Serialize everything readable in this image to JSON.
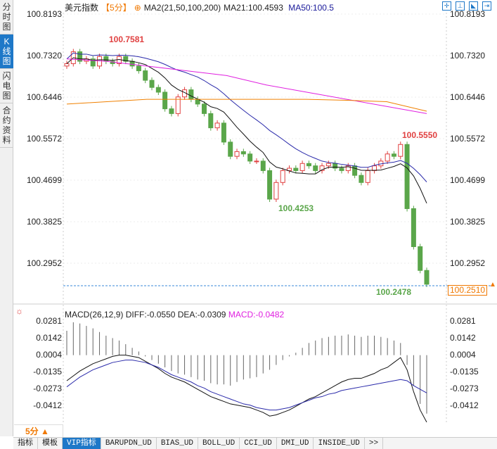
{
  "sidebar": {
    "tabs": [
      {
        "label": "分时图"
      },
      {
        "label": "K线图",
        "active": true
      },
      {
        "label": "闪电图"
      },
      {
        "label": "合约资料"
      }
    ]
  },
  "header": {
    "title": "美元指数",
    "period": "【5分】",
    "indicator": "MA2(21,50,100,200)",
    "ma21": "MA21:100.4593",
    "ma50": "MA50:100.5"
  },
  "tools": [
    "crosshair-icon",
    "range-icon",
    "draw-icon",
    "exit-icon"
  ],
  "price_axis": {
    "labels": [
      "100.8193",
      "100.7320",
      "100.6446",
      "100.5572",
      "100.4699",
      "100.3825",
      "100.2952"
    ],
    "max": 100.8193,
    "min": 100.2952
  },
  "annotations": {
    "high1": "100.7581",
    "low1": "100.4253",
    "high2": "100.5550",
    "low2": "100.2478"
  },
  "current_price": "100.2510",
  "candles_close": [
    100.715,
    100.74,
    100.72,
    100.725,
    100.71,
    100.73,
    100.72,
    100.715,
    100.73,
    100.72,
    100.71,
    100.7,
    100.68,
    100.665,
    100.655,
    100.62,
    100.61,
    100.645,
    100.66,
    100.64,
    100.63,
    100.61,
    100.58,
    100.59,
    100.55,
    100.52,
    100.53,
    100.525,
    100.51,
    100.51,
    100.49,
    100.43,
    100.465,
    100.49,
    100.495,
    100.49,
    100.505,
    100.5,
    100.49,
    100.5,
    100.505,
    100.495,
    100.49,
    100.5,
    100.48,
    100.465,
    100.49,
    100.5,
    100.51,
    100.525,
    100.52,
    100.545,
    100.41,
    100.33,
    100.28,
    100.251
  ],
  "ma100": [
    100.725,
    100.72,
    100.71,
    100.7,
    100.69,
    100.67,
    100.655,
    100.64,
    100.625,
    100.61
  ],
  "ma200": [
    100.63,
    100.635,
    100.64,
    100.64,
    100.64,
    100.64,
    100.64,
    100.638,
    100.635,
    100.615
  ],
  "macd": {
    "header": {
      "name": "MACD(26,12,9)",
      "diff": "DIFF:-0.0550",
      "dea": "DEA:-0.0309",
      "macd": "MACD:-0.0482"
    },
    "axis_labels": [
      "0.0281",
      "0.0142",
      "0.0004",
      "-0.0135",
      "-0.0273",
      "-0.0412"
    ],
    "max": 0.0281,
    "min": -0.0412,
    "hist": [
      0.02,
      0.027,
      0.026,
      0.024,
      0.022,
      0.019,
      0.016,
      0.014,
      0.012,
      0.009,
      0.006,
      0.003,
      -0.001,
      -0.004,
      -0.007,
      -0.01,
      -0.013,
      -0.015,
      -0.016,
      -0.018,
      -0.02,
      -0.021,
      -0.023,
      -0.024,
      -0.024,
      -0.025,
      -0.022,
      -0.02,
      -0.019,
      -0.018,
      -0.015,
      -0.012,
      -0.008,
      -0.004,
      -0.001,
      0.002,
      0.006,
      0.01,
      0.012,
      0.014,
      0.015,
      0.016,
      0.016,
      0.017,
      0.016,
      0.015,
      0.016,
      0.016,
      0.015,
      0.014,
      0.012,
      0.01,
      -0.008,
      -0.025,
      -0.04,
      -0.048
    ],
    "diff": [
      -0.021,
      -0.017,
      -0.013,
      -0.01,
      -0.007,
      -0.005,
      -0.003,
      -0.001,
      0.0,
      0.0,
      -0.001,
      -0.002,
      -0.005,
      -0.008,
      -0.011,
      -0.015,
      -0.018,
      -0.02,
      -0.022,
      -0.025,
      -0.028,
      -0.031,
      -0.034,
      -0.036,
      -0.038,
      -0.04,
      -0.041,
      -0.042,
      -0.043,
      -0.045,
      -0.047,
      -0.05,
      -0.049,
      -0.047,
      -0.045,
      -0.042,
      -0.039,
      -0.036,
      -0.034,
      -0.031,
      -0.028,
      -0.025,
      -0.022,
      -0.02,
      -0.019,
      -0.019,
      -0.017,
      -0.015,
      -0.012,
      -0.01,
      -0.006,
      -0.002,
      -0.012,
      -0.03,
      -0.045,
      -0.055
    ],
    "dea": [
      -0.026,
      -0.022,
      -0.018,
      -0.015,
      -0.012,
      -0.01,
      -0.008,
      -0.006,
      -0.005,
      -0.004,
      -0.004,
      -0.005,
      -0.006,
      -0.008,
      -0.01,
      -0.013,
      -0.016,
      -0.018,
      -0.02,
      -0.022,
      -0.025,
      -0.027,
      -0.03,
      -0.032,
      -0.034,
      -0.036,
      -0.038,
      -0.04,
      -0.041,
      -0.043,
      -0.044,
      -0.045,
      -0.045,
      -0.044,
      -0.043,
      -0.041,
      -0.039,
      -0.037,
      -0.035,
      -0.034,
      -0.032,
      -0.031,
      -0.029,
      -0.028,
      -0.027,
      -0.026,
      -0.025,
      -0.024,
      -0.023,
      -0.022,
      -0.021,
      -0.02,
      -0.021,
      -0.025,
      -0.028,
      -0.031
    ]
  },
  "period_label": "5分 ▲",
  "bottom_tabs": [
    {
      "label": "指标"
    },
    {
      "label": "模板"
    },
    {
      "label": "VIP指标",
      "active": true
    },
    {
      "label": "BARUPDN_UD"
    },
    {
      "label": "BIAS_UD"
    },
    {
      "label": "BOLL_UD"
    },
    {
      "label": "CCI_UD"
    },
    {
      "label": "DMI_UD"
    },
    {
      "label": "INSIDE_UD"
    },
    {
      "label": ">>"
    }
  ],
  "colors": {
    "up": "#e04040",
    "down": "#5aa64a",
    "ma21": "#111111",
    "ma50": "#2a2aaa",
    "ma100": "#e020e0",
    "ma200": "#f08000"
  }
}
